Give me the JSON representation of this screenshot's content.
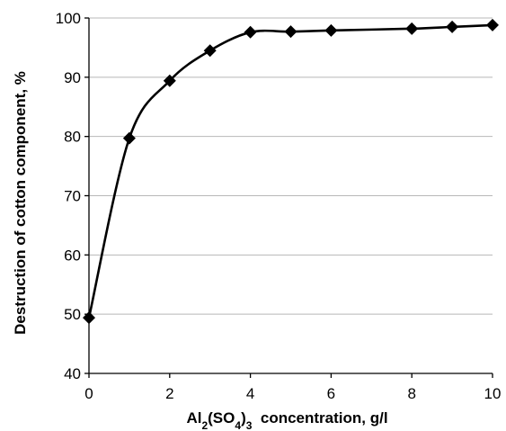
{
  "chart_data": {
    "type": "line",
    "title": "",
    "xlabel": {
      "parts": [
        {
          "text": "Al",
          "style": "normal"
        },
        {
          "text": "2",
          "style": "sub"
        },
        {
          "text": "(SO",
          "style": "normal"
        },
        {
          "text": "4",
          "style": "sub"
        },
        {
          "text": ")",
          "style": "normal"
        },
        {
          "text": "3",
          "style": "sub"
        },
        {
          "text": "  concentration, g/l",
          "style": "normal"
        }
      ]
    },
    "ylabel": "Destruction of cotton component, %",
    "xlim": [
      0,
      10
    ],
    "ylim": [
      40,
      100
    ],
    "xticks": [
      "0",
      "2",
      "4",
      "6",
      "8",
      "10"
    ],
    "yticks": [
      "40",
      "50",
      "60",
      "70",
      "80",
      "90",
      "100"
    ],
    "grid": "horizontal",
    "series": [
      {
        "marker": "diamond",
        "color": "#000000",
        "points": [
          {
            "x": 0,
            "y": 49.4
          },
          {
            "x": 1,
            "y": 79.7
          },
          {
            "x": 2,
            "y": 89.4
          },
          {
            "x": 3,
            "y": 94.5
          },
          {
            "x": 4,
            "y": 97.6
          },
          {
            "x": 5,
            "y": 97.7
          },
          {
            "x": 6,
            "y": 97.9
          },
          {
            "x": 8,
            "y": 98.2
          },
          {
            "x": 9,
            "y": 98.5
          },
          {
            "x": 10,
            "y": 98.8
          }
        ]
      }
    ]
  }
}
